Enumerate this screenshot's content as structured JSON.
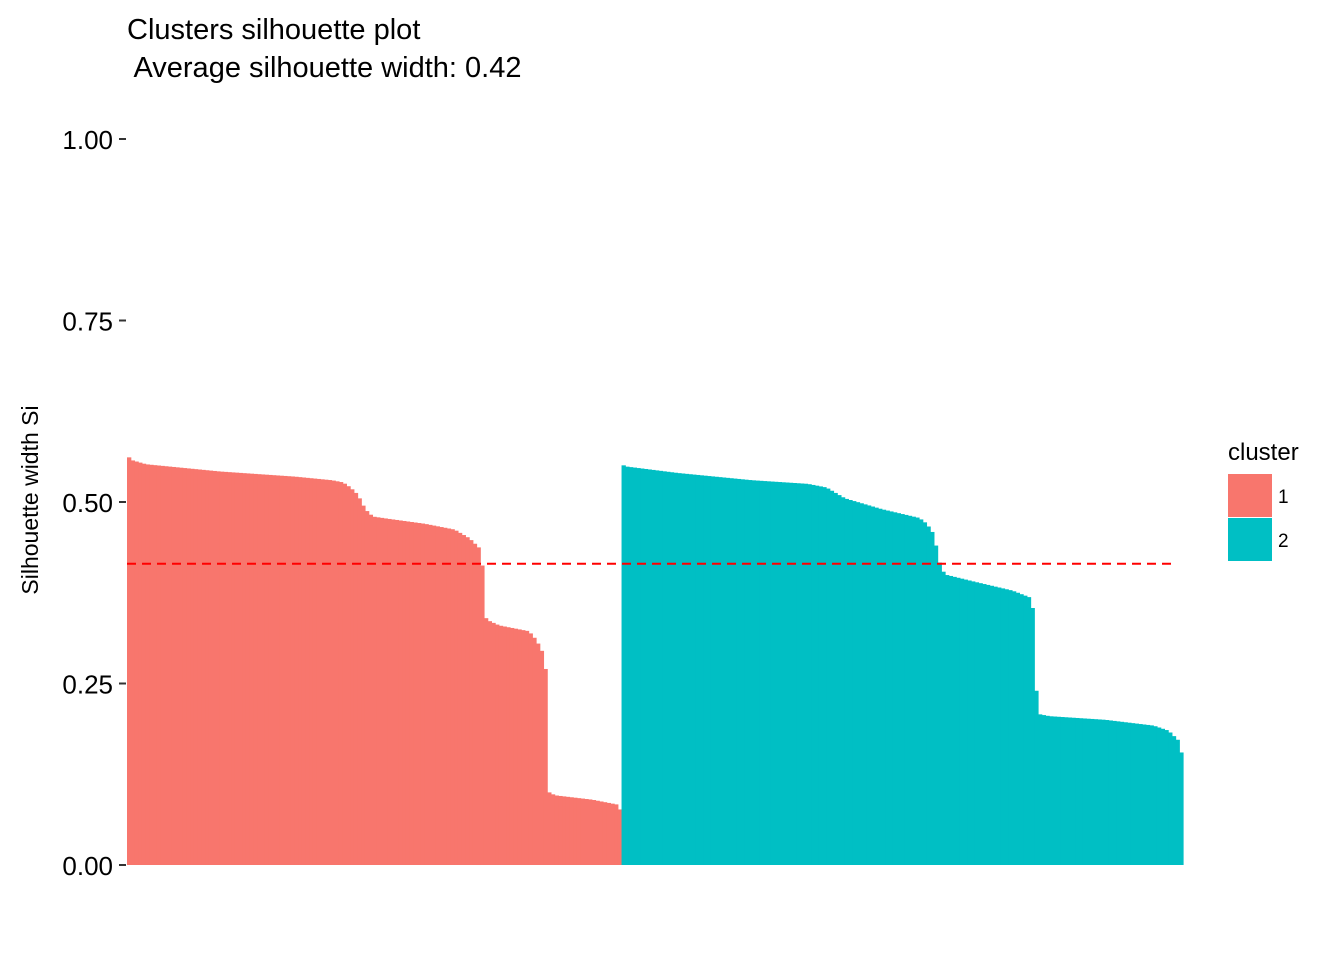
{
  "chart_data": {
    "type": "bar",
    "title": "Clusters silhouette plot",
    "subtitle": " Average silhouette width: 0.42",
    "xlabel": "",
    "ylabel": "Silhouette width Si",
    "ylim": [
      0,
      1
    ],
    "yticks": [
      "0.00",
      "0.25",
      "0.50",
      "0.75",
      "1.00"
    ],
    "ytick_values": [
      0,
      0.25,
      0.5,
      0.75,
      1.0
    ],
    "average_line": {
      "value": 0.415,
      "color": "#FF0000",
      "style": "dashed"
    },
    "grid": false,
    "legend": {
      "title": "cluster",
      "position": "right",
      "entries": [
        {
          "label": "1",
          "color": "#F8766D"
        },
        {
          "label": "2",
          "color": "#00BFC4"
        }
      ]
    },
    "series": [
      {
        "name": "1",
        "color": "#F8766D",
        "n": 133,
        "profile": [
          [
            0,
            0.565
          ],
          [
            1,
            0.558
          ],
          [
            5,
            0.552
          ],
          [
            25,
            0.542
          ],
          [
            45,
            0.535
          ],
          [
            55,
            0.53
          ],
          [
            58,
            0.527
          ],
          [
            60,
            0.52
          ],
          [
            62,
            0.51
          ],
          [
            64,
            0.49
          ],
          [
            66,
            0.48
          ],
          [
            70,
            0.477
          ],
          [
            80,
            0.47
          ],
          [
            88,
            0.462
          ],
          [
            92,
            0.45
          ],
          [
            95,
            0.435
          ],
          [
            96,
            0.39
          ],
          [
            96.5,
            0.34
          ],
          [
            97,
            0.337
          ],
          [
            100,
            0.33
          ],
          [
            108,
            0.322
          ],
          [
            110,
            0.31
          ],
          [
            112,
            0.29
          ],
          [
            113,
            0.25
          ],
          [
            113.5,
            0.1
          ],
          [
            115,
            0.096
          ],
          [
            125,
            0.09
          ],
          [
            132,
            0.083
          ],
          [
            133,
            0.07
          ]
        ]
      },
      {
        "name": "2",
        "color": "#00BFC4",
        "n": 151,
        "profile": [
          [
            0,
            0.552
          ],
          [
            1,
            0.549
          ],
          [
            15,
            0.54
          ],
          [
            35,
            0.53
          ],
          [
            50,
            0.525
          ],
          [
            55,
            0.52
          ],
          [
            60,
            0.505
          ],
          [
            70,
            0.49
          ],
          [
            80,
            0.478
          ],
          [
            82,
            0.47
          ],
          [
            84,
            0.455
          ],
          [
            85,
            0.425
          ],
          [
            86,
            0.408
          ],
          [
            87,
            0.4
          ],
          [
            95,
            0.39
          ],
          [
            105,
            0.378
          ],
          [
            110,
            0.368
          ],
          [
            111,
            0.34
          ],
          [
            111.5,
            0.24
          ],
          [
            112,
            0.208
          ],
          [
            115,
            0.205
          ],
          [
            130,
            0.2
          ],
          [
            143,
            0.192
          ],
          [
            147,
            0.185
          ],
          [
            150,
            0.17
          ],
          [
            151,
            0.14
          ]
        ]
      }
    ]
  }
}
